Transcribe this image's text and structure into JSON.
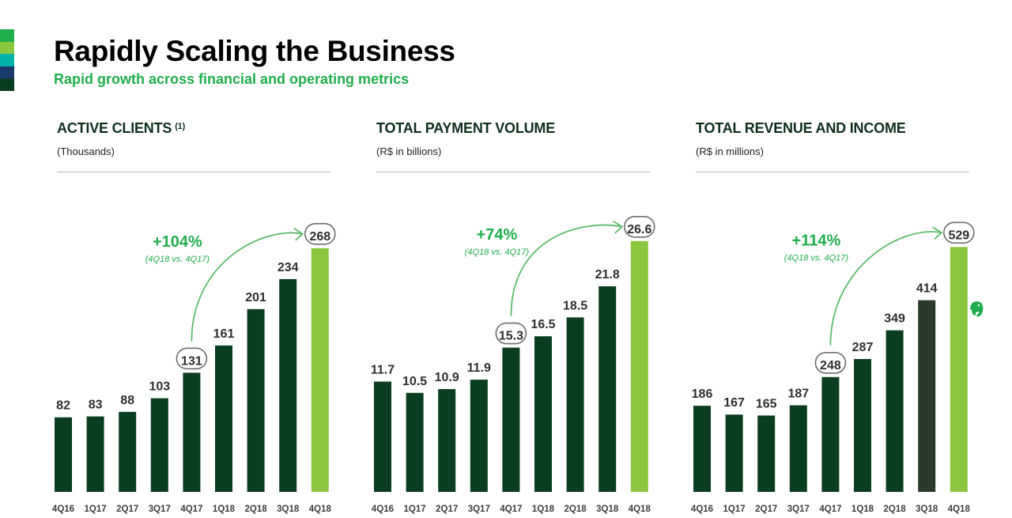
{
  "header": {
    "title": "Rapidly Scaling the Business",
    "subtitle": "Rapid growth across financial and operating metrics"
  },
  "colors": {
    "bar_dark": "#0b3d20",
    "bar_highlight": "#8cc63f",
    "bar_3q18_revenue": "#2a3a2a",
    "accent_green": "#1fae4b",
    "stripes": [
      "#1fae4b",
      "#8cc63f",
      "#00b2a9",
      "#1b3a6b",
      "#0b3d20"
    ]
  },
  "brand_icon": "evernote-elephant-icon",
  "chart_data": [
    {
      "type": "bar",
      "title": "ACTIVE CLIENTS",
      "title_note": "(1)",
      "unit": "(Thousands)",
      "categories": [
        "4Q16",
        "1Q17",
        "2Q17",
        "3Q17",
        "4Q17",
        "1Q18",
        "2Q18",
        "3Q18",
        "4Q18"
      ],
      "values": [
        82,
        83,
        88,
        103,
        131,
        161,
        201,
        234,
        268
      ],
      "value_labels": [
        "82",
        "83",
        "88",
        "103",
        "131",
        "161",
        "201",
        "234",
        "268"
      ],
      "ylim": [
        0,
        280
      ],
      "circled": [
        "4Q17",
        "4Q18"
      ],
      "highlight": "4Q18",
      "growth": "+104%",
      "growth_note": "(4Q18 vs. 4Q17)",
      "grid": false
    },
    {
      "type": "bar",
      "title": "TOTAL PAYMENT VOLUME",
      "title_note": "",
      "unit": "(R$ in billions)",
      "categories": [
        "4Q16",
        "1Q17",
        "2Q17",
        "3Q17",
        "4Q17",
        "1Q18",
        "2Q18",
        "3Q18",
        "4Q18"
      ],
      "values": [
        11.7,
        10.5,
        10.9,
        11.9,
        15.3,
        16.5,
        18.5,
        21.8,
        26.6
      ],
      "value_labels": [
        "11.7",
        "10.5",
        "10.9",
        "11.9",
        "15.3",
        "16.5",
        "18.5",
        "21.8",
        "26.6"
      ],
      "ylim": [
        0,
        27
      ],
      "circled": [
        "4Q17",
        "4Q18"
      ],
      "highlight": "4Q18",
      "growth": "+74%",
      "growth_note": "(4Q18 vs. 4Q17)",
      "grid": false
    },
    {
      "type": "bar",
      "title": "TOTAL REVENUE AND INCOME",
      "title_note": "",
      "unit": "(R$ in millions)",
      "categories": [
        "4Q16",
        "1Q17",
        "2Q17",
        "3Q17",
        "4Q17",
        "1Q18",
        "2Q18",
        "3Q18",
        "4Q18"
      ],
      "values": [
        186,
        167,
        165,
        187,
        248,
        287,
        349,
        414,
        529
      ],
      "value_labels": [
        "186",
        "167",
        "165",
        "187",
        "248",
        "287",
        "349",
        "414",
        "529"
      ],
      "ylim": [
        0,
        550
      ],
      "circled": [
        "4Q17",
        "4Q18"
      ],
      "highlight": "4Q18",
      "growth": "+114%",
      "growth_note": "(4Q18 vs. 4Q17)",
      "grid": false
    }
  ]
}
